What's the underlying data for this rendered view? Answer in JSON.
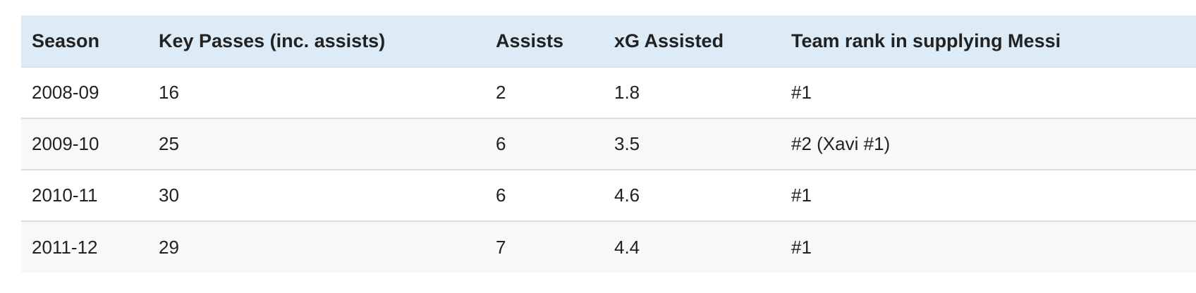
{
  "table": {
    "headers": [
      "Season",
      "Key Passes (inc. assists)",
      "Assists",
      "xG Assisted",
      "Team rank in supplying Messi"
    ],
    "rows": [
      [
        "2008-09",
        "16",
        "2",
        "1.8",
        "#1"
      ],
      [
        "2009-10",
        "25",
        "6",
        "3.5",
        "#2 (Xavi #1)"
      ],
      [
        "2010-11",
        "30",
        "6",
        "4.6",
        "#1"
      ],
      [
        "2011-12",
        "29",
        "7",
        "4.4",
        "#1"
      ]
    ]
  },
  "colors": {
    "header_bg": "#ddebf6",
    "row_alt_bg": "#f8f8f8",
    "row_border": "#dedede",
    "text": "#222222"
  }
}
